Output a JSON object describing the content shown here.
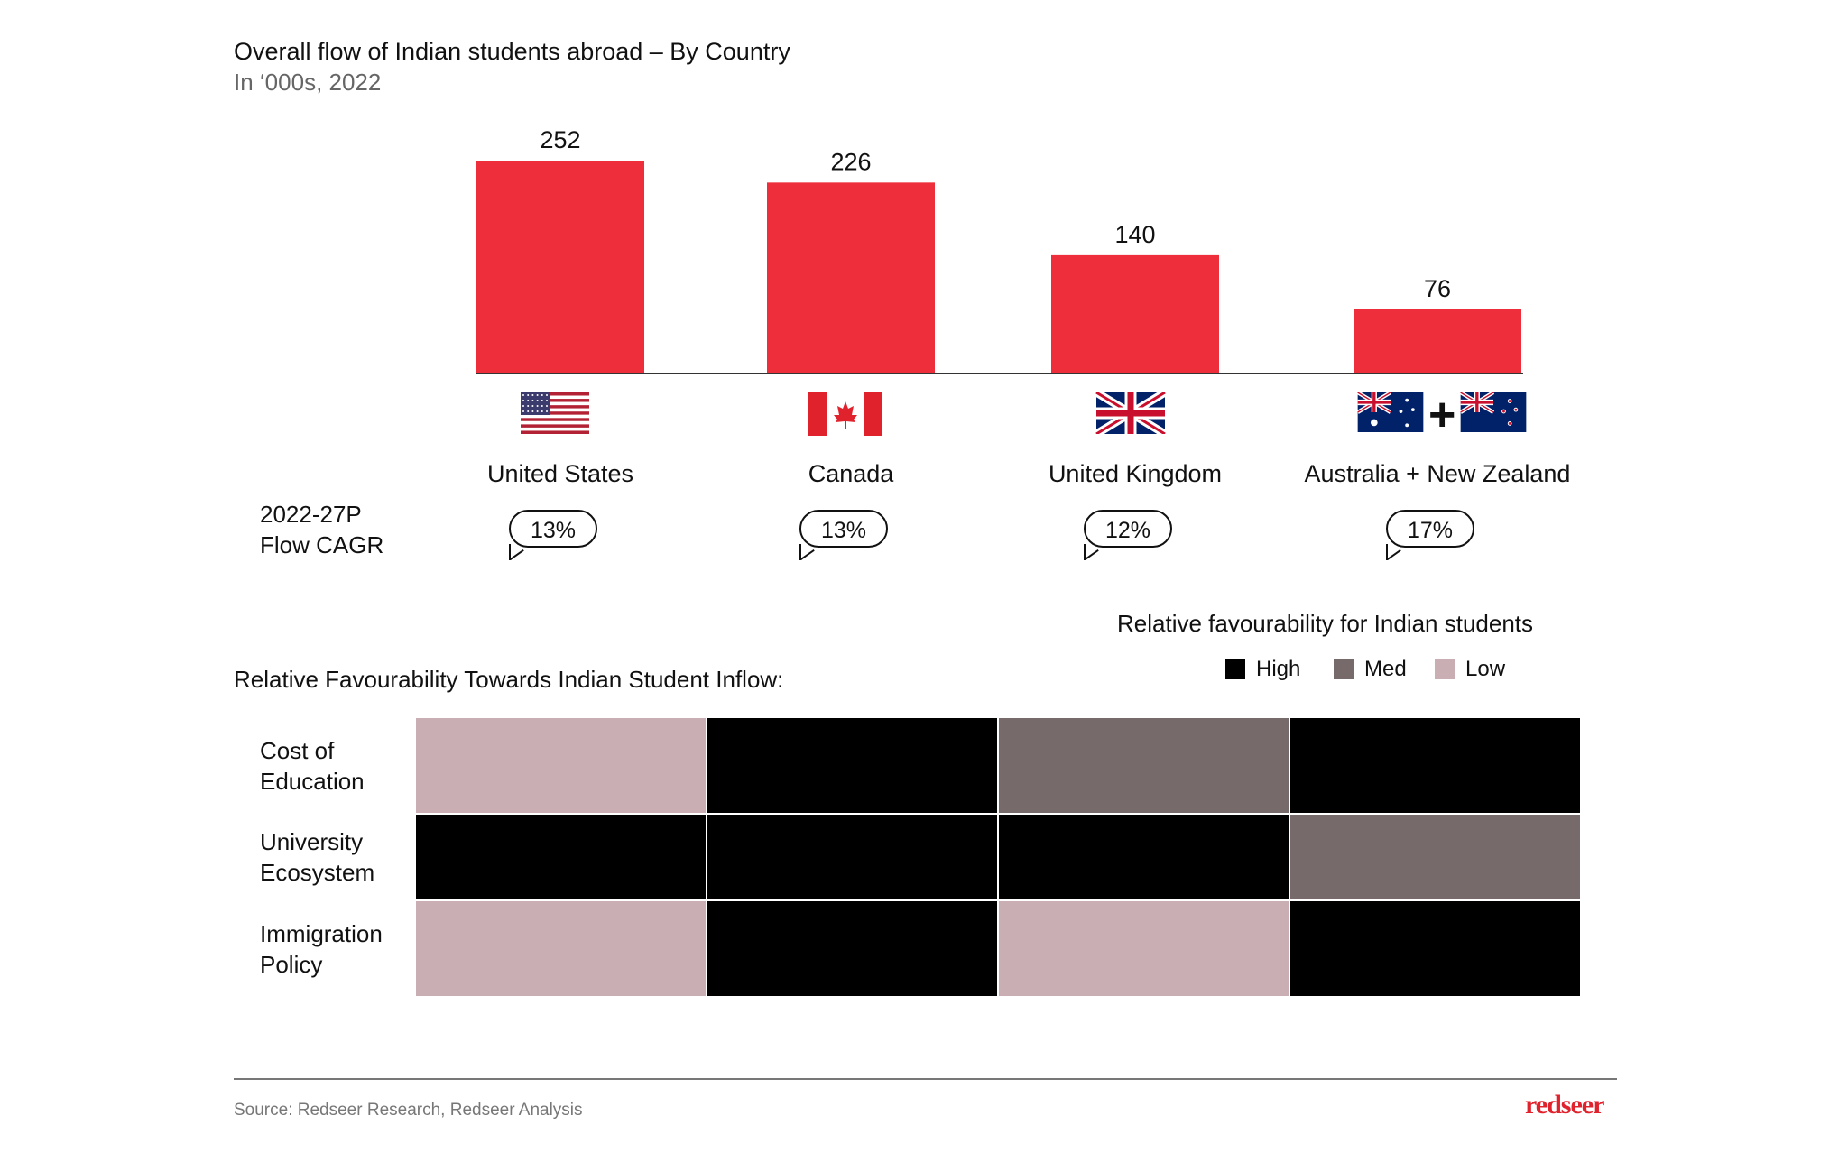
{
  "chart_data": {
    "type": "bar",
    "title": "Overall flow of Indian students abroad – By Country",
    "subtitle": "In ‘000s, 2022",
    "categories": [
      "United States",
      "Canada",
      "United Kingdom",
      "Australia + New Zealand"
    ],
    "values": [
      252,
      226,
      140,
      76
    ],
    "flags": [
      "us-flag",
      "canada-flag",
      "uk-flag",
      "australia-flag + new-zealand-flag"
    ],
    "bar_color": "#ee2e3a",
    "cagr_label": [
      "2022-27P",
      "Flow CAGR"
    ],
    "cagr": [
      "13%",
      "13%",
      "12%",
      "17%"
    ]
  },
  "heatmap": {
    "title": "Relative Favourability Towards Indian Student Inflow:",
    "legend_title": "Relative favourability for Indian students",
    "legend": [
      {
        "label": "High",
        "color": "#000000"
      },
      {
        "label": "Med",
        "color": "#766a6b"
      },
      {
        "label": "Low",
        "color": "#c9aeb3"
      }
    ],
    "rows": [
      {
        "label": [
          "Cost of",
          "Education"
        ],
        "values": [
          "Low",
          "High",
          "Med",
          "High"
        ]
      },
      {
        "label": [
          "University",
          "Ecosystem"
        ],
        "values": [
          "High",
          "High",
          "High",
          "Med"
        ]
      },
      {
        "label": [
          "Immigration",
          "Policy"
        ],
        "values": [
          "Low",
          "High",
          "Low",
          "High"
        ]
      }
    ]
  },
  "footer": {
    "source": "Source: Redseer Research, Redseer Analysis",
    "logo": "redseer"
  }
}
